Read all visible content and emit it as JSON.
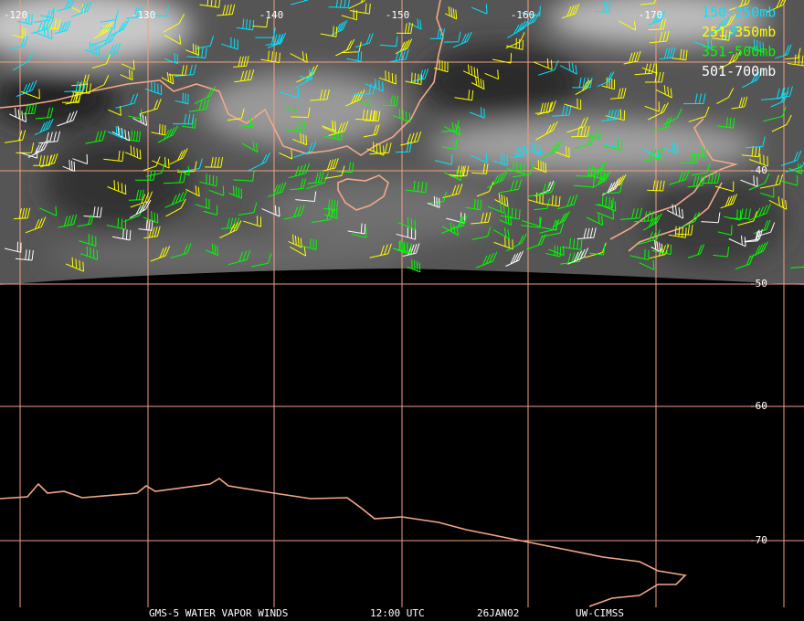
{
  "map": {
    "longitude_labels": [
      "-120",
      "-130",
      "-140",
      "-150",
      "-160",
      "-170"
    ],
    "latitude_labels": [
      "-40",
      "-50",
      "-60",
      "-70"
    ],
    "legend": [
      {
        "label": "150-250mb",
        "color": "#00e5ff"
      },
      {
        "label": "251-350mb",
        "color": "#ffff00"
      },
      {
        "label": "351-500mb",
        "color": "#00ff00"
      },
      {
        "label": "501-700mb",
        "color": "#ffffff"
      }
    ],
    "footer": [
      "GMS-5 WATER VAPOR WINDS",
      "12:00 UTC",
      "26JAN02",
      "UW-CIMSS"
    ]
  }
}
